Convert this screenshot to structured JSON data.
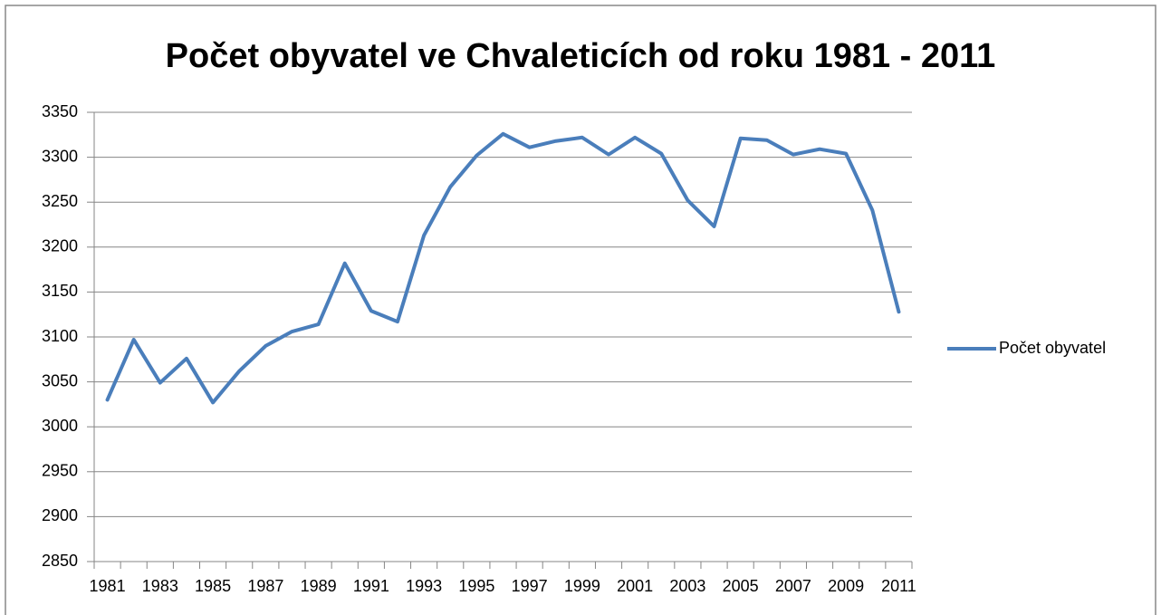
{
  "chart_data": {
    "type": "line",
    "title": "Počet obyvatel ve Chvaleticích od roku 1981 - 2011",
    "categories": [
      "1981",
      null,
      "1983",
      null,
      "1985",
      null,
      "1987",
      null,
      "1989",
      null,
      "1991",
      null,
      "1993",
      null,
      "1995",
      null,
      "1997",
      null,
      "1999",
      null,
      "2001",
      null,
      "2003",
      null,
      "2005",
      null,
      "2007",
      null,
      "2009",
      null,
      "2011"
    ],
    "series": [
      {
        "name": "Počet obyvatel",
        "color": "#4a7ebb",
        "values": [
          3030,
          3097,
          3049,
          3076,
          3027,
          3062,
          3090,
          3106,
          3114,
          3182,
          3129,
          3117,
          3213,
          3267,
          3302,
          3326,
          3311,
          3318,
          3322,
          3303,
          3322,
          3304,
          3252,
          3223,
          3321,
          3319,
          3303,
          3309,
          3304,
          3241,
          3128
        ]
      }
    ],
    "ylim": [
      2850,
      3350
    ],
    "yticks": [
      2850,
      2900,
      2950,
      3000,
      3050,
      3100,
      3150,
      3200,
      3250,
      3300,
      3350
    ],
    "grid": true,
    "legend": "right"
  }
}
